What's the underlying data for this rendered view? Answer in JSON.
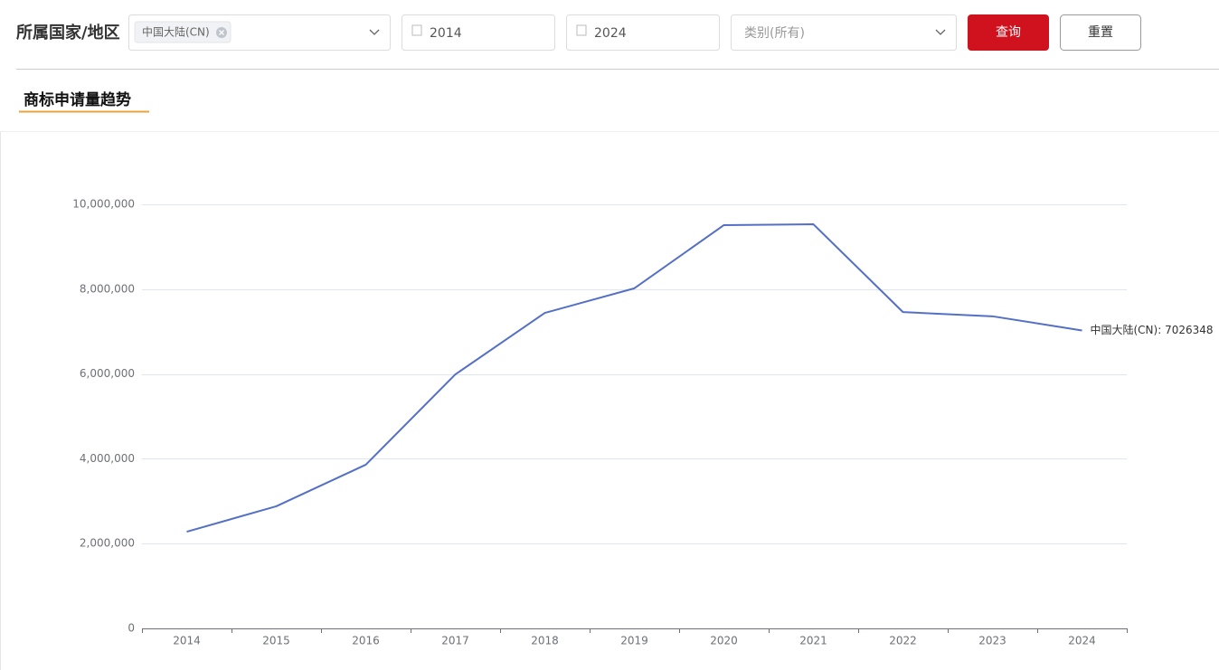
{
  "filters": {
    "label": "所属国家/地区",
    "tag": "中国大陆(CN)",
    "start_year": "2014",
    "end_year": "2024",
    "category": "类别(所有)",
    "query": "查询",
    "reset": "重置"
  },
  "section_title": "商标申请量趋势",
  "chart_data": {
    "type": "line",
    "categories": [
      "2014",
      "2015",
      "2016",
      "2017",
      "2018",
      "2019",
      "2020",
      "2021",
      "2022",
      "2023",
      "2024"
    ],
    "series": [
      {
        "name": "中国大陆(CN)",
        "color": "#5470c6",
        "values": [
          2280000,
          2880000,
          3860000,
          5990000,
          7440000,
          8020000,
          9510000,
          9530000,
          7460000,
          7360000,
          7026348
        ],
        "value_labels": [
          null,
          null,
          null,
          null,
          null,
          null,
          null,
          null,
          null,
          null,
          "中国大陆(CN): 7026348"
        ]
      }
    ],
    "ylim": [
      0,
      10000000
    ],
    "yticks": [
      0,
      {
        "value": 2000000,
        "label": "2,000,000"
      },
      {
        "value": 4000000,
        "label": "4,000,000"
      },
      {
        "value": 6000000,
        "label": "6,000,000"
      },
      {
        "value": 8000000,
        "label": "8,000,000"
      },
      {
        "value": 10000000,
        "label": "10,000,000"
      }
    ],
    "grid": true
  }
}
